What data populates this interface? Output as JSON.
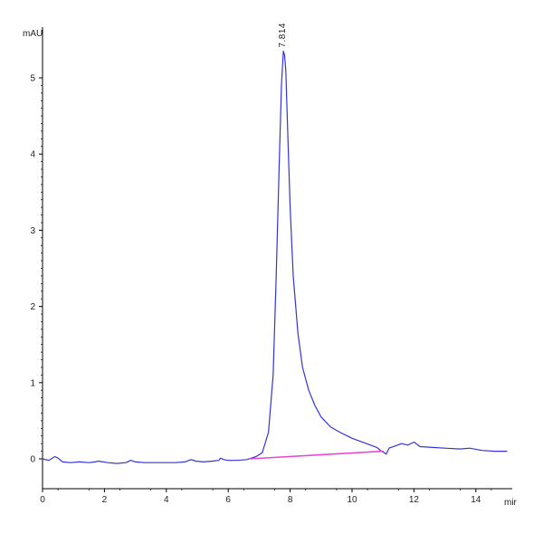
{
  "chart_data": {
    "type": "line",
    "ylabel": "mAU",
    "xlabel": "mir",
    "xlim": [
      0,
      15.15
    ],
    "ylim": [
      -0.33,
      5.6
    ],
    "x_ticks": [
      0,
      2,
      4,
      6,
      8,
      10,
      12,
      14
    ],
    "y_ticks": [
      0,
      1,
      2,
      3,
      4,
      5
    ],
    "peak_label": "7.814",
    "series": [
      {
        "color": "#3434d6",
        "x": [
          0.0,
          0.2,
          0.4,
          0.5,
          0.65,
          0.9,
          1.2,
          1.5,
          1.7,
          1.8,
          2.1,
          2.4,
          2.7,
          2.85,
          3.0,
          3.3,
          3.7,
          4.0,
          4.3,
          4.6,
          4.8,
          4.95,
          5.2,
          5.5,
          5.7,
          5.75,
          5.85,
          6.0,
          6.3,
          6.6,
          6.9,
          7.1,
          7.3,
          7.45,
          7.55,
          7.65,
          7.72,
          7.78,
          7.82,
          7.86,
          7.92,
          8.0,
          8.1,
          8.25,
          8.4,
          8.6,
          8.8,
          9.0,
          9.3,
          9.6,
          10.0,
          10.4,
          10.8,
          10.95,
          11.05,
          11.1,
          11.2,
          11.4,
          11.6,
          11.8,
          12.0,
          12.2,
          12.6,
          13.0,
          13.5,
          13.8,
          14.2,
          14.6,
          15.0
        ],
        "y": [
          0.0,
          -0.02,
          0.03,
          0.01,
          -0.04,
          -0.05,
          -0.04,
          -0.05,
          -0.04,
          -0.03,
          -0.05,
          -0.06,
          -0.05,
          -0.02,
          -0.04,
          -0.05,
          -0.05,
          -0.05,
          -0.05,
          -0.04,
          -0.01,
          -0.03,
          -0.04,
          -0.03,
          -0.02,
          0.01,
          -0.01,
          -0.02,
          -0.02,
          -0.01,
          0.03,
          0.08,
          0.35,
          1.1,
          2.4,
          3.9,
          4.9,
          5.35,
          5.3,
          5.1,
          4.3,
          3.3,
          2.4,
          1.65,
          1.2,
          0.9,
          0.7,
          0.55,
          0.42,
          0.35,
          0.27,
          0.21,
          0.15,
          0.1,
          0.08,
          0.06,
          0.14,
          0.17,
          0.2,
          0.18,
          0.22,
          0.16,
          0.15,
          0.14,
          0.13,
          0.14,
          0.11,
          0.1,
          0.1
        ]
      },
      {
        "color": "#e648d0",
        "x": [
          6.7,
          11.0
        ],
        "y": [
          0.0,
          0.1
        ]
      }
    ]
  }
}
